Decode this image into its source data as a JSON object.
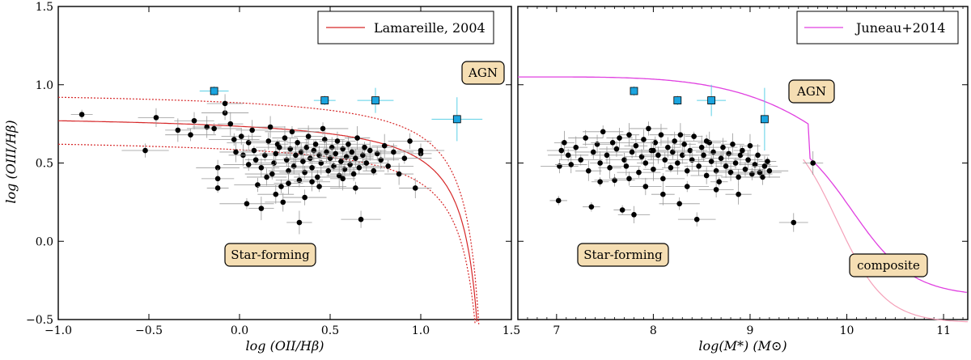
{
  "chart_data": [
    {
      "type": "scatter",
      "xlabel": "log (OII/Hβ)",
      "ylabel": "log (OIII/Hβ)",
      "xlim": [
        -1.0,
        1.5
      ],
      "ylim": [
        -0.5,
        1.5
      ],
      "xticks": [
        "−1.0",
        "−0.5",
        "0.0",
        "0.5",
        "1.0",
        "1.5"
      ],
      "yticks": [
        "−0.5",
        "0.0",
        "0.5",
        "1.0",
        "1.5"
      ],
      "legend": {
        "placement": "top-right",
        "entries": [
          {
            "label": "Lamareille, 2004",
            "color": "#d62728"
          }
        ]
      },
      "annotations": [
        "AGN",
        "Star-forming"
      ],
      "highlight_points": [
        {
          "x": -0.14,
          "y": 0.96,
          "xerr": 0.08,
          "yerr": 0.03
        },
        {
          "x": 0.47,
          "y": 0.9,
          "xerr": 0.06,
          "yerr": 0.03
        },
        {
          "x": 0.75,
          "y": 0.9,
          "xerr": 0.1,
          "yerr": 0.08
        },
        {
          "x": 1.2,
          "y": 0.78,
          "xerr": 0.14,
          "yerr": 0.14
        }
      ],
      "black_points": [
        {
          "x": -0.87,
          "y": 0.81
        },
        {
          "x": -0.52,
          "y": 0.58
        },
        {
          "x": -0.46,
          "y": 0.79
        },
        {
          "x": -0.34,
          "y": 0.71
        },
        {
          "x": -0.27,
          "y": 0.68
        },
        {
          "x": -0.25,
          "y": 0.77
        },
        {
          "x": -0.18,
          "y": 0.73
        },
        {
          "x": -0.14,
          "y": 0.72
        },
        {
          "x": -0.12,
          "y": 0.47
        },
        {
          "x": -0.12,
          "y": 0.4
        },
        {
          "x": -0.12,
          "y": 0.34
        },
        {
          "x": -0.08,
          "y": 0.82
        },
        {
          "x": -0.08,
          "y": 0.88
        },
        {
          "x": -0.05,
          "y": 0.75
        },
        {
          "x": -0.03,
          "y": 0.65
        },
        {
          "x": 0.01,
          "y": 0.67
        },
        {
          "x": 0.02,
          "y": 0.55
        },
        {
          "x": 0.04,
          "y": 0.24
        },
        {
          "x": 0.05,
          "y": 0.63
        },
        {
          "x": 0.07,
          "y": 0.71
        },
        {
          "x": 0.08,
          "y": 0.58
        },
        {
          "x": 0.1,
          "y": 0.36
        },
        {
          "x": 0.12,
          "y": 0.47
        },
        {
          "x": 0.12,
          "y": 0.21
        },
        {
          "x": 0.14,
          "y": 0.55
        },
        {
          "x": 0.16,
          "y": 0.64
        },
        {
          "x": 0.17,
          "y": 0.73
        },
        {
          "x": 0.18,
          "y": 0.43
        },
        {
          "x": 0.19,
          "y": 0.5
        },
        {
          "x": 0.2,
          "y": 0.56
        },
        {
          "x": 0.21,
          "y": 0.62
        },
        {
          "x": 0.23,
          "y": 0.35
        },
        {
          "x": 0.24,
          "y": 0.25
        },
        {
          "x": 0.25,
          "y": 0.66
        },
        {
          "x": 0.26,
          "y": 0.52
        },
        {
          "x": 0.27,
          "y": 0.45
        },
        {
          "x": 0.28,
          "y": 0.59
        },
        {
          "x": 0.29,
          "y": 0.7
        },
        {
          "x": 0.3,
          "y": 0.48
        },
        {
          "x": 0.31,
          "y": 0.55
        },
        {
          "x": 0.32,
          "y": 0.63
        },
        {
          "x": 0.33,
          "y": 0.39
        },
        {
          "x": 0.34,
          "y": 0.57
        },
        {
          "x": 0.35,
          "y": 0.51
        },
        {
          "x": 0.36,
          "y": 0.44
        },
        {
          "x": 0.37,
          "y": 0.6
        },
        {
          "x": 0.38,
          "y": 0.67
        },
        {
          "x": 0.39,
          "y": 0.53
        },
        {
          "x": 0.4,
          "y": 0.47
        },
        {
          "x": 0.41,
          "y": 0.58
        },
        {
          "x": 0.42,
          "y": 0.62
        },
        {
          "x": 0.43,
          "y": 0.41
        },
        {
          "x": 0.44,
          "y": 0.55
        },
        {
          "x": 0.45,
          "y": 0.5
        },
        {
          "x": 0.46,
          "y": 0.72
        },
        {
          "x": 0.47,
          "y": 0.65
        },
        {
          "x": 0.48,
          "y": 0.57
        },
        {
          "x": 0.49,
          "y": 0.45
        },
        {
          "x": 0.5,
          "y": 0.53
        },
        {
          "x": 0.51,
          "y": 0.6
        },
        {
          "x": 0.52,
          "y": 0.48
        },
        {
          "x": 0.53,
          "y": 0.56
        },
        {
          "x": 0.54,
          "y": 0.64
        },
        {
          "x": 0.55,
          "y": 0.42
        },
        {
          "x": 0.56,
          "y": 0.51
        },
        {
          "x": 0.57,
          "y": 0.59
        },
        {
          "x": 0.58,
          "y": 0.46
        },
        {
          "x": 0.59,
          "y": 0.54
        },
        {
          "x": 0.6,
          "y": 0.62
        },
        {
          "x": 0.61,
          "y": 0.49
        },
        {
          "x": 0.62,
          "y": 0.57
        },
        {
          "x": 0.63,
          "y": 0.43
        },
        {
          "x": 0.64,
          "y": 0.53
        },
        {
          "x": 0.65,
          "y": 0.66
        },
        {
          "x": 0.66,
          "y": 0.47
        },
        {
          "x": 0.67,
          "y": 0.14
        },
        {
          "x": 0.68,
          "y": 0.55
        },
        {
          "x": 0.69,
          "y": 0.6
        },
        {
          "x": 0.7,
          "y": 0.5
        },
        {
          "x": 0.72,
          "y": 0.58
        },
        {
          "x": 0.74,
          "y": 0.45
        },
        {
          "x": 0.76,
          "y": 0.56
        },
        {
          "x": 0.78,
          "y": 0.52
        },
        {
          "x": 0.8,
          "y": 0.61
        },
        {
          "x": 0.82,
          "y": 0.48
        },
        {
          "x": 0.85,
          "y": 0.57
        },
        {
          "x": 0.88,
          "y": 0.43
        },
        {
          "x": 0.91,
          "y": 0.53
        },
        {
          "x": 0.94,
          "y": 0.64
        },
        {
          "x": 0.97,
          "y": 0.34
        },
        {
          "x": 1.0,
          "y": 0.56
        },
        {
          "x": 1.0,
          "y": 0.58
        },
        {
          "x": 0.2,
          "y": 0.3
        },
        {
          "x": 0.33,
          "y": 0.12
        },
        {
          "x": 0.05,
          "y": 0.49
        },
        {
          "x": 0.15,
          "y": 0.41
        },
        {
          "x": 0.27,
          "y": 0.37
        },
        {
          "x": 0.44,
          "y": 0.35
        },
        {
          "x": 0.36,
          "y": 0.28
        },
        {
          "x": -0.02,
          "y": 0.57
        },
        {
          "x": 0.09,
          "y": 0.52
        },
        {
          "x": 0.22,
          "y": 0.6
        },
        {
          "x": 0.4,
          "y": 0.38
        },
        {
          "x": 0.57,
          "y": 0.4
        },
        {
          "x": 0.64,
          "y": 0.34
        }
      ],
      "curves": [
        {
          "name": "Lamareille, 2004",
          "style": "solid",
          "color": "#d62728"
        },
        {
          "name": "upper",
          "style": "dotted",
          "color": "#d62728"
        },
        {
          "name": "lower",
          "style": "dotted",
          "color": "#d62728"
        }
      ]
    },
    {
      "type": "scatter",
      "xlabel": "log(M*) (M⊙)",
      "ylabel": "",
      "xlim": [
        6.6,
        11.25
      ],
      "ylim": [
        -0.5,
        1.5
      ],
      "xticks": [
        "7",
        "8",
        "9",
        "10",
        "11"
      ],
      "legend": {
        "placement": "top-right",
        "entries": [
          {
            "label": "Juneau+2014",
            "color": "#e040e0"
          }
        ]
      },
      "annotations": [
        "AGN",
        "Star-forming",
        "composite"
      ],
      "highlight_points": [
        {
          "x": 7.8,
          "y": 0.96,
          "xerr": 0.0,
          "yerr": 0.03
        },
        {
          "x": 8.25,
          "y": 0.9,
          "xerr": 0.04,
          "yerr": 0.03
        },
        {
          "x": 8.6,
          "y": 0.9,
          "xerr": 0.15,
          "yerr": 0.1
        },
        {
          "x": 9.15,
          "y": 0.78,
          "xerr": 0.03,
          "yerr": 0.2
        }
      ],
      "black_points": [
        {
          "x": 7.02,
          "y": 0.26
        },
        {
          "x": 7.03,
          "y": 0.48
        },
        {
          "x": 7.05,
          "y": 0.58
        },
        {
          "x": 7.08,
          "y": 0.63
        },
        {
          "x": 7.12,
          "y": 0.55
        },
        {
          "x": 7.15,
          "y": 0.49
        },
        {
          "x": 7.2,
          "y": 0.6
        },
        {
          "x": 7.25,
          "y": 0.52
        },
        {
          "x": 7.3,
          "y": 0.66
        },
        {
          "x": 7.33,
          "y": 0.45
        },
        {
          "x": 7.36,
          "y": 0.22
        },
        {
          "x": 7.38,
          "y": 0.57
        },
        {
          "x": 7.42,
          "y": 0.62
        },
        {
          "x": 7.45,
          "y": 0.5
        },
        {
          "x": 7.48,
          "y": 0.7
        },
        {
          "x": 7.52,
          "y": 0.55
        },
        {
          "x": 7.55,
          "y": 0.47
        },
        {
          "x": 7.58,
          "y": 0.63
        },
        {
          "x": 7.62,
          "y": 0.59
        },
        {
          "x": 7.65,
          "y": 0.66
        },
        {
          "x": 7.68,
          "y": 0.2
        },
        {
          "x": 7.7,
          "y": 0.52
        },
        {
          "x": 7.72,
          "y": 0.48
        },
        {
          "x": 7.75,
          "y": 0.68
        },
        {
          "x": 7.78,
          "y": 0.57
        },
        {
          "x": 7.8,
          "y": 0.17
        },
        {
          "x": 7.82,
          "y": 0.61
        },
        {
          "x": 7.85,
          "y": 0.44
        },
        {
          "x": 7.88,
          "y": 0.54
        },
        {
          "x": 7.9,
          "y": 0.65
        },
        {
          "x": 7.92,
          "y": 0.5
        },
        {
          "x": 7.95,
          "y": 0.72
        },
        {
          "x": 7.98,
          "y": 0.58
        },
        {
          "x": 8.0,
          "y": 0.46
        },
        {
          "x": 8.02,
          "y": 0.63
        },
        {
          "x": 8.05,
          "y": 0.55
        },
        {
          "x": 8.08,
          "y": 0.68
        },
        {
          "x": 8.1,
          "y": 0.4
        },
        {
          "x": 8.12,
          "y": 0.52
        },
        {
          "x": 8.15,
          "y": 0.6
        },
        {
          "x": 8.18,
          "y": 0.47
        },
        {
          "x": 8.2,
          "y": 0.57
        },
        {
          "x": 8.22,
          "y": 0.64
        },
        {
          "x": 8.25,
          "y": 0.5
        },
        {
          "x": 8.27,
          "y": 0.24
        },
        {
          "x": 8.3,
          "y": 0.55
        },
        {
          "x": 8.32,
          "y": 0.62
        },
        {
          "x": 8.35,
          "y": 0.45
        },
        {
          "x": 8.38,
          "y": 0.58
        },
        {
          "x": 8.4,
          "y": 0.52
        },
        {
          "x": 8.42,
          "y": 0.67
        },
        {
          "x": 8.45,
          "y": 0.14
        },
        {
          "x": 8.47,
          "y": 0.48
        },
        {
          "x": 8.5,
          "y": 0.6
        },
        {
          "x": 8.52,
          "y": 0.55
        },
        {
          "x": 8.55,
          "y": 0.42
        },
        {
          "x": 8.58,
          "y": 0.63
        },
        {
          "x": 8.6,
          "y": 0.51
        },
        {
          "x": 8.62,
          "y": 0.57
        },
        {
          "x": 8.65,
          "y": 0.45
        },
        {
          "x": 8.68,
          "y": 0.38
        },
        {
          "x": 8.7,
          "y": 0.53
        },
        {
          "x": 8.72,
          "y": 0.6
        },
        {
          "x": 8.75,
          "y": 0.48
        },
        {
          "x": 8.78,
          "y": 0.56
        },
        {
          "x": 8.8,
          "y": 0.44
        },
        {
          "x": 8.82,
          "y": 0.62
        },
        {
          "x": 8.85,
          "y": 0.5
        },
        {
          "x": 8.88,
          "y": 0.41
        },
        {
          "x": 8.9,
          "y": 0.55
        },
        {
          "x": 8.92,
          "y": 0.58
        },
        {
          "x": 8.95,
          "y": 0.46
        },
        {
          "x": 8.98,
          "y": 0.52
        },
        {
          "x": 9.0,
          "y": 0.61
        },
        {
          "x": 9.02,
          "y": 0.43
        },
        {
          "x": 9.05,
          "y": 0.49
        },
        {
          "x": 9.08,
          "y": 0.55
        },
        {
          "x": 9.1,
          "y": 0.44
        },
        {
          "x": 9.13,
          "y": 0.41
        },
        {
          "x": 9.15,
          "y": 0.48
        },
        {
          "x": 9.18,
          "y": 0.51
        },
        {
          "x": 9.2,
          "y": 0.45
        },
        {
          "x": 9.45,
          "y": 0.12
        },
        {
          "x": 9.65,
          "y": 0.5
        },
        {
          "x": 7.6,
          "y": 0.39
        },
        {
          "x": 7.92,
          "y": 0.35
        },
        {
          "x": 8.1,
          "y": 0.3
        },
        {
          "x": 8.35,
          "y": 0.35
        },
        {
          "x": 8.65,
          "y": 0.33
        },
        {
          "x": 8.88,
          "y": 0.3
        },
        {
          "x": 7.45,
          "y": 0.38
        },
        {
          "x": 7.75,
          "y": 0.4
        },
        {
          "x": 8.0,
          "y": 0.58
        },
        {
          "x": 8.28,
          "y": 0.68
        },
        {
          "x": 8.55,
          "y": 0.64
        }
      ],
      "curves": [
        {
          "name": "Juneau+2014",
          "style": "solid",
          "color": "#e040e0"
        },
        {
          "name": "lower",
          "style": "solid",
          "color": "#f4a0b8"
        }
      ]
    }
  ]
}
